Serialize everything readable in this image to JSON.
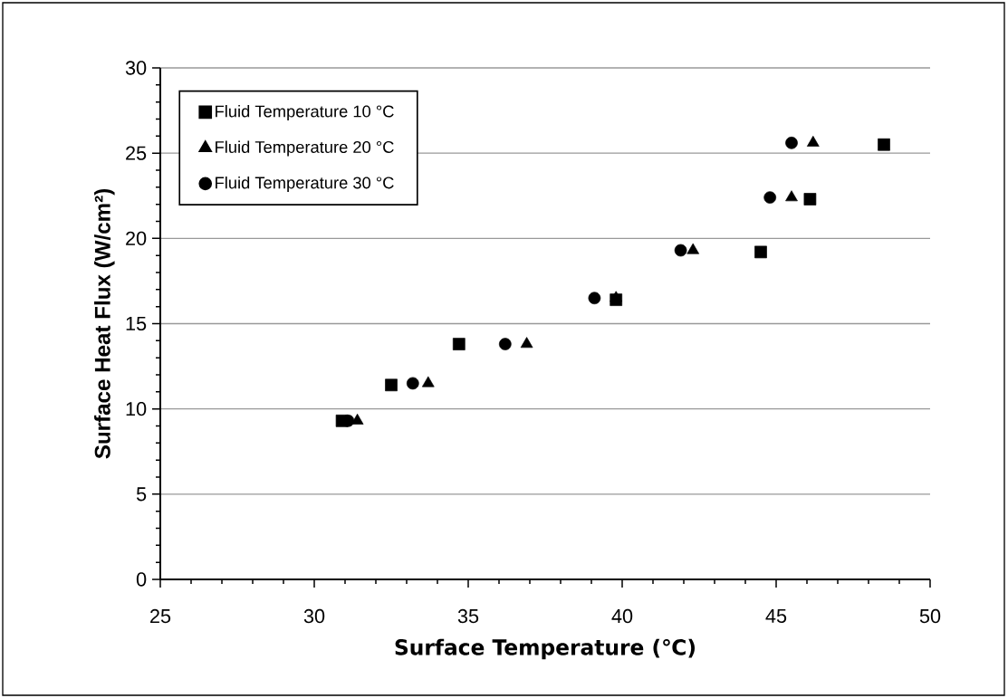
{
  "chart_data": {
    "type": "scatter",
    "xlabel": "Surface Temperature (℃)",
    "ylabel": "Surface Heat Flux (W/cm²)",
    "xlim": [
      25,
      50
    ],
    "xticks": [
      25,
      30,
      35,
      40,
      45,
      50
    ],
    "ylim": [
      0,
      30
    ],
    "yticks": [
      0,
      5,
      10,
      15,
      20,
      25,
      30
    ],
    "grid": "y",
    "legend": "top left",
    "series": [
      {
        "name": "Fluid Temperature 10 °C",
        "color": "#000000",
        "marker": "square",
        "x": [
          30.9,
          32.5,
          34.7,
          39.8,
          44.5,
          46.1,
          48.5
        ],
        "values": [
          9.3,
          11.4,
          13.8,
          16.4,
          19.2,
          22.3,
          25.5
        ]
      },
      {
        "name": "Fluid Temperature 20 °C",
        "color": "#000000",
        "marker": "triangle",
        "x": [
          31.4,
          33.7,
          36.9,
          39.8,
          42.3,
          45.5,
          46.2
        ],
        "values": [
          9.3,
          11.5,
          13.8,
          16.5,
          19.3,
          22.4,
          25.6
        ]
      },
      {
        "name": "Fluid Temperature 30 °C",
        "color": "#000000",
        "marker": "circle",
        "x": [
          31.1,
          33.2,
          36.2,
          39.1,
          41.9,
          44.8,
          45.5
        ],
        "values": [
          9.3,
          11.5,
          13.8,
          16.5,
          19.3,
          22.4,
          25.6
        ]
      }
    ]
  }
}
